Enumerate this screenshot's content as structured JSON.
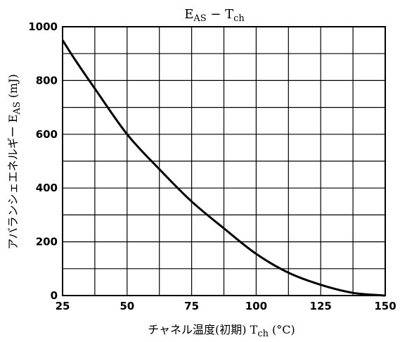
{
  "chart_data": {
    "type": "line",
    "title": {
      "main": "E",
      "sub": "AS",
      "rest": " − T",
      "sub2": "ch"
    },
    "xlabel": {
      "text": "チャネル温度(初期)  T",
      "sub": "ch",
      "unit": "  (°C)"
    },
    "ylabel": {
      "text": "アバランシェエネルギー  E",
      "sub": "AS",
      "unit": "  (mJ)"
    },
    "xlim": [
      25,
      150
    ],
    "ylim": [
      0,
      1000
    ],
    "x_ticks": [
      25,
      50,
      75,
      100,
      125,
      150
    ],
    "y_ticks": [
      0,
      200,
      400,
      600,
      800,
      1000
    ],
    "grid": true,
    "series": [
      {
        "x": [
          25,
          30,
          37.5,
          50,
          62.5,
          75,
          87.5,
          100,
          112.5,
          125,
          137.5,
          150
        ],
        "y": [
          950,
          875,
          770,
          600,
          470,
          350,
          250,
          155,
          85,
          40,
          10,
          0
        ]
      }
    ]
  }
}
